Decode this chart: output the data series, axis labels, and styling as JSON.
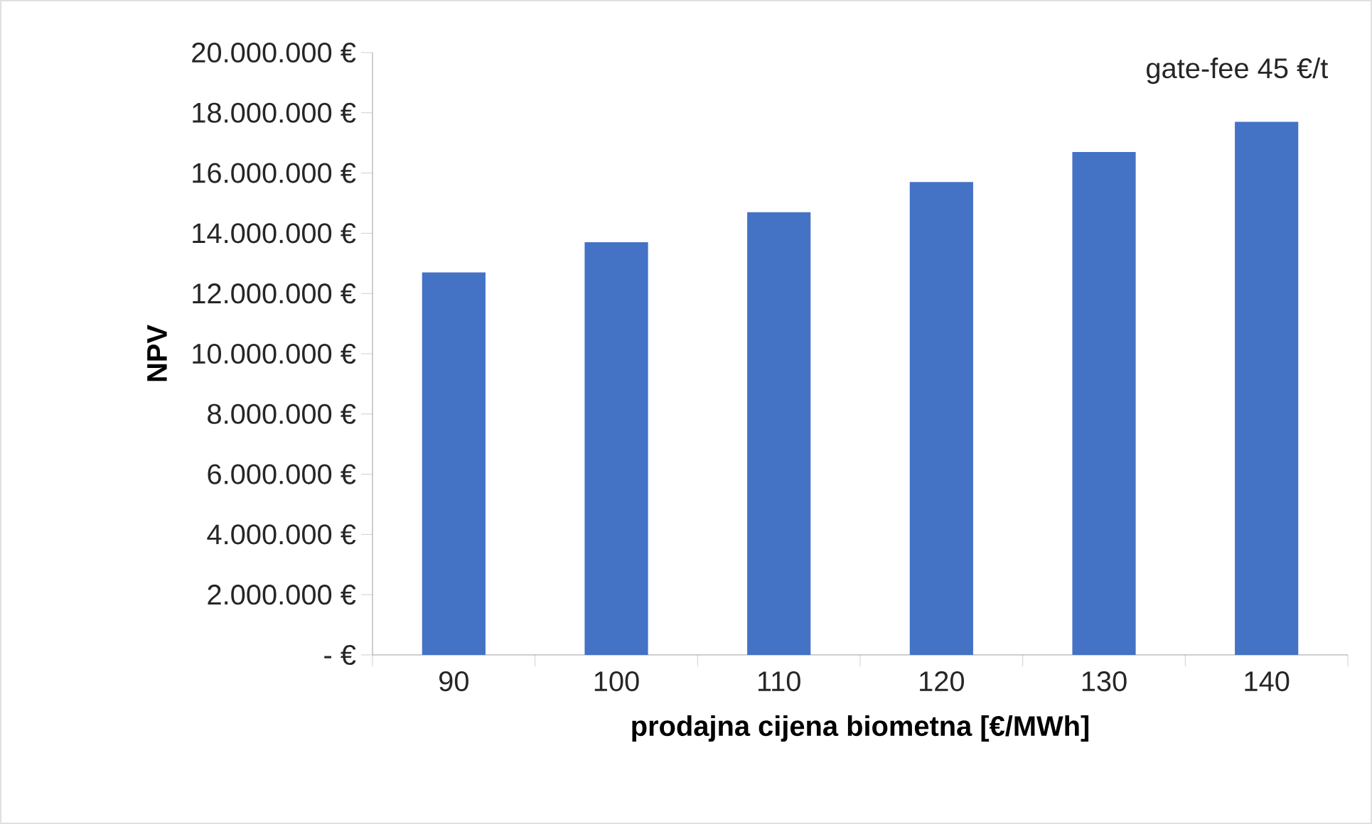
{
  "chart_data": {
    "type": "bar",
    "xlabel": "prodajna cijena biometna [€/MWh]",
    "ylabel": "NPV",
    "annotations": [
      "gate-fee 45 €/t"
    ],
    "categories": [
      "90",
      "100",
      "110",
      "120",
      "130",
      "140"
    ],
    "values": [
      12700000,
      13700000,
      14700000,
      15700000,
      16700000,
      17700000
    ],
    "color": "#4472c4",
    "ylim": [
      0,
      20000000
    ],
    "yticks": [
      {
        "value": 0,
        "label": "- €"
      },
      {
        "value": 2000000,
        "label": "2.000.000 €"
      },
      {
        "value": 4000000,
        "label": "4.000.000 €"
      },
      {
        "value": 6000000,
        "label": "6.000.000 €"
      },
      {
        "value": 8000000,
        "label": "8.000.000 €"
      },
      {
        "value": 10000000,
        "label": "10.000.000 €"
      },
      {
        "value": 12000000,
        "label": "12.000.000 €"
      },
      {
        "value": 14000000,
        "label": "14.000.000 €"
      },
      {
        "value": 16000000,
        "label": "16.000.000 €"
      },
      {
        "value": 18000000,
        "label": "18.000.000 €"
      },
      {
        "value": 20000000,
        "label": "20.000.000 €"
      }
    ],
    "grid": false
  }
}
